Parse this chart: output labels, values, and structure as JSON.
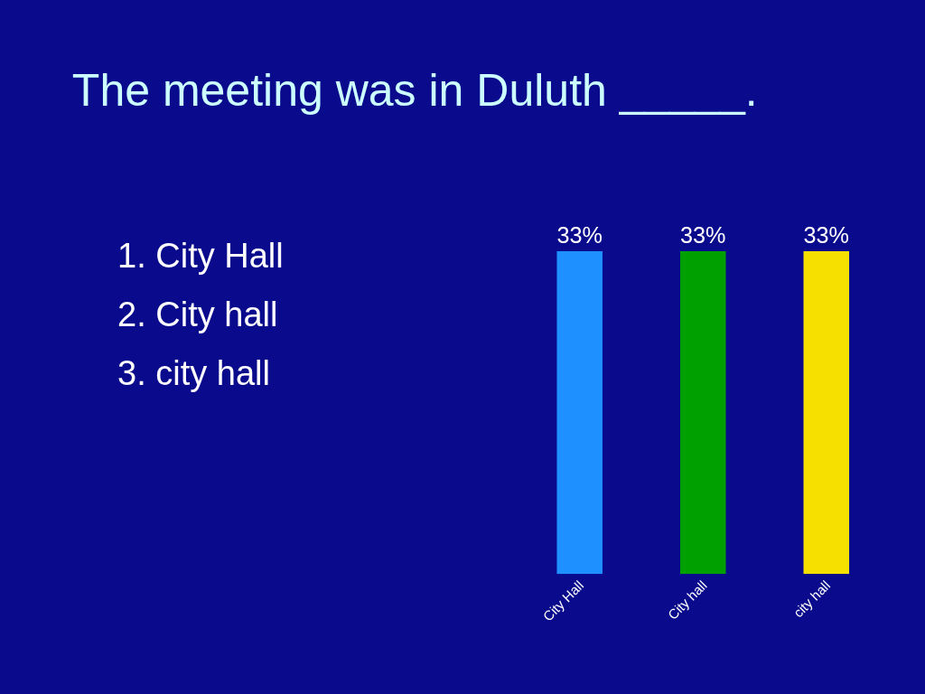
{
  "chart_data": {
    "type": "bar",
    "title": "The meeting was in Duluth _____.",
    "categories": [
      "City Hall",
      "City hall",
      "city hall"
    ],
    "values": [
      33,
      33,
      33
    ],
    "value_labels": [
      "33%",
      "33%",
      "33%"
    ],
    "colors": [
      "#1e90ff",
      "#00a000",
      "#f5e000"
    ],
    "annotations": [
      "1. City Hall",
      "2. City hall",
      "3. city hall"
    ],
    "orientation": "vertical"
  }
}
